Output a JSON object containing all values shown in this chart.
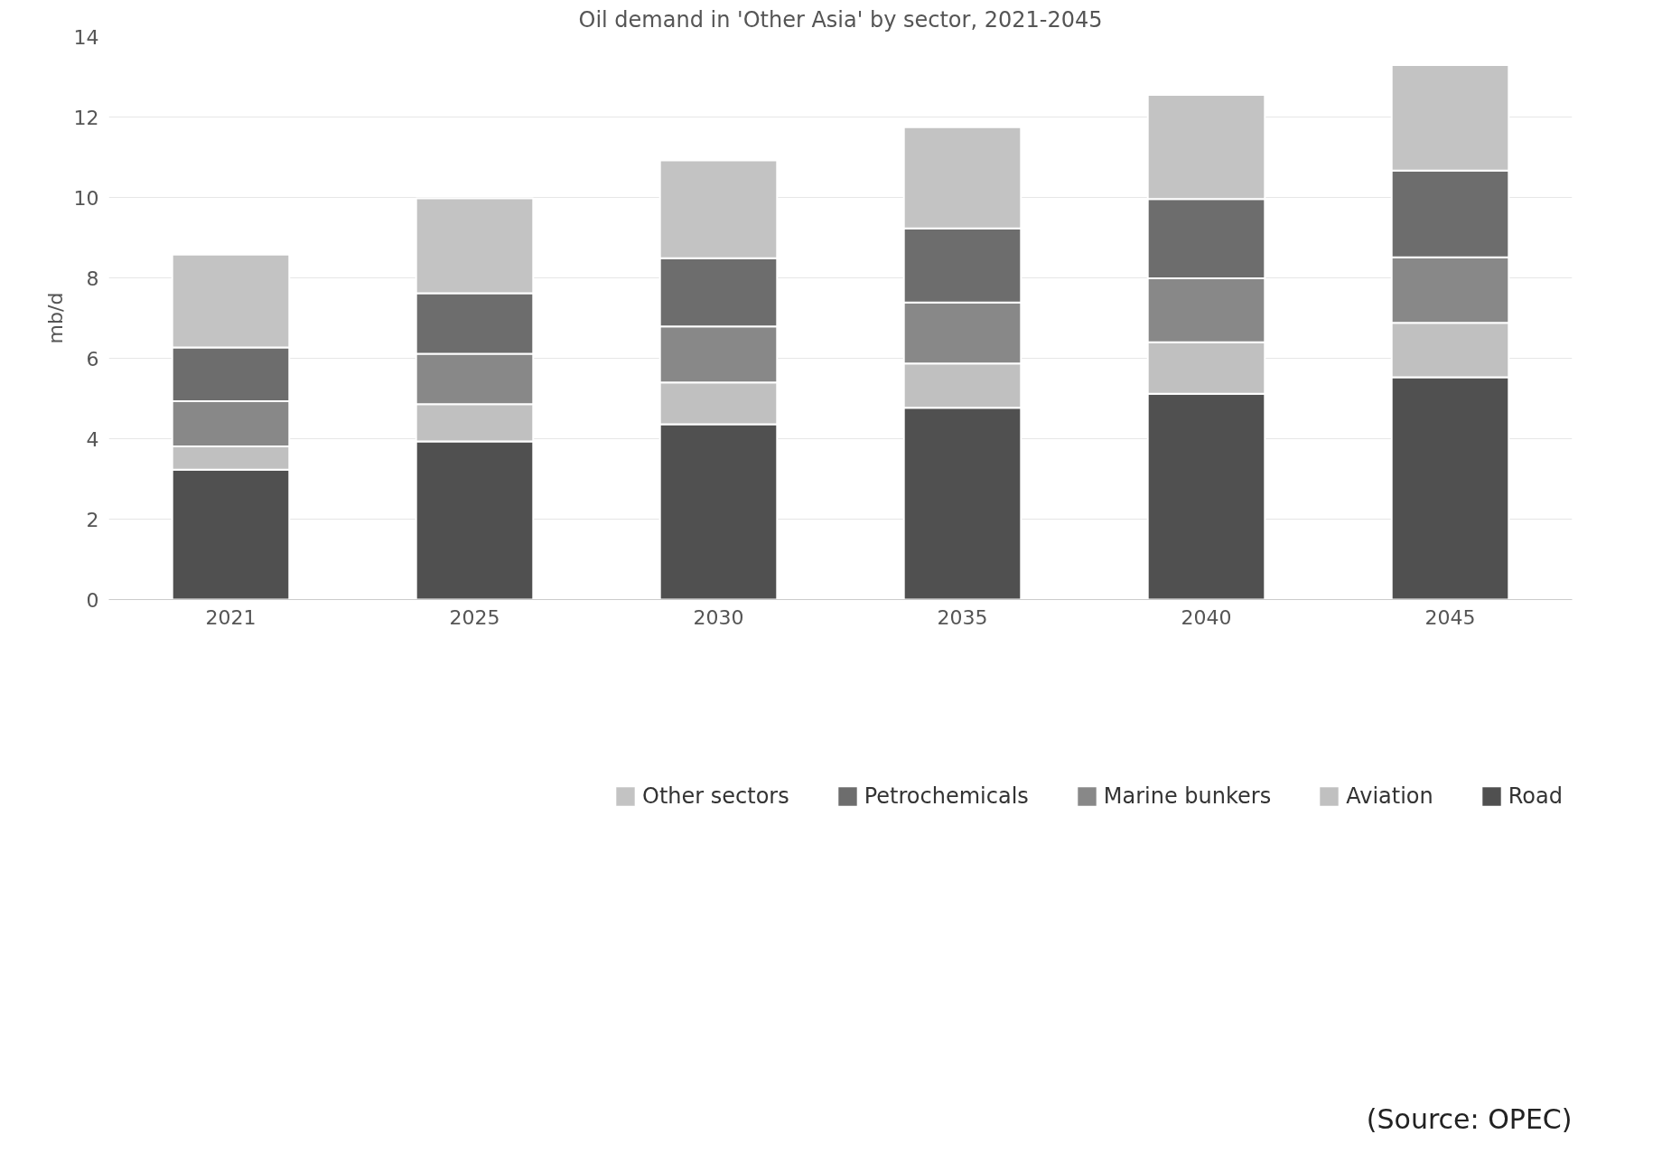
{
  "chart_data": {
    "type": "bar",
    "title": "Oil demand in 'Other Asia' by sector, 2021-2045",
    "ylabel": "mb/d",
    "categories": [
      "2021",
      "2025",
      "2030",
      "2035",
      "2040",
      "2045"
    ],
    "stacked": true,
    "series": [
      {
        "name": "Road",
        "color": "#505050",
        "values": [
          3.23,
          3.93,
          4.36,
          4.77,
          5.12,
          5.53
        ]
      },
      {
        "name": "Aviation",
        "color": "#c0c0c0",
        "values": [
          0.58,
          0.93,
          1.04,
          1.1,
          1.28,
          1.35
        ]
      },
      {
        "name": "Marine bunkers",
        "color": "#888888",
        "values": [
          1.12,
          1.25,
          1.39,
          1.52,
          1.59,
          1.63
        ]
      },
      {
        "name": "Petrochemicals",
        "color": "#6d6d6d",
        "values": [
          1.34,
          1.51,
          1.7,
          1.84,
          1.97,
          2.16
        ]
      },
      {
        "name": "Other sectors",
        "color": "#c3c3c3",
        "values": [
          2.31,
          2.36,
          2.43,
          2.52,
          2.59,
          2.62
        ]
      }
    ],
    "ylim": [
      0,
      14
    ],
    "yticks": [
      0,
      2,
      4,
      6,
      8,
      10,
      12,
      14
    ],
    "grid": "y",
    "legend": "bottom",
    "annotations": [
      "(Source: OPEC)"
    ]
  }
}
